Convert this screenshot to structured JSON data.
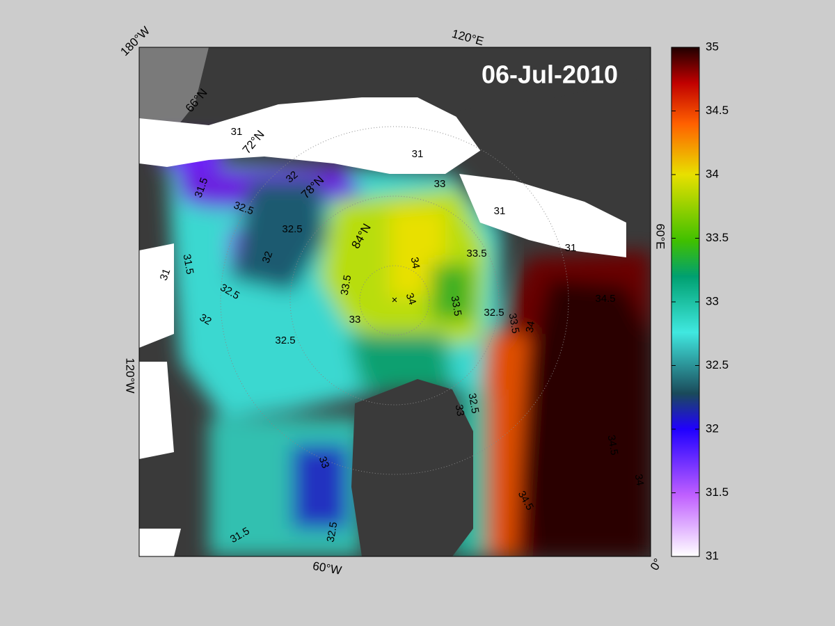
{
  "map": {
    "title": "06-Jul-2010",
    "longitude_labels": [
      "180°W",
      "120°E",
      "60°E",
      "0°",
      "60°W",
      "120°W"
    ],
    "latitude_labels": [
      "66°N",
      "72°N",
      "78°N",
      "84°N"
    ],
    "contour_labels": [
      "31",
      "32",
      "32.5",
      "31.5",
      "32.5",
      "32",
      "31.5",
      "31",
      "32.5",
      "32.5",
      "32",
      "33",
      "31",
      "33",
      "33.5",
      "34",
      "34",
      "33.5",
      "33.5",
      "32.5",
      "33.5",
      "34",
      "34.5",
      "31",
      "31",
      "34.5",
      "34.5",
      "34",
      "32.5",
      "33",
      "33",
      "32.5",
      "31.5"
    ]
  },
  "colorbar": {
    "lim": [
      31,
      35
    ],
    "ticks": [
      31,
      31.5,
      32,
      32.5,
      33,
      33.5,
      34,
      34.5,
      35
    ]
  }
}
